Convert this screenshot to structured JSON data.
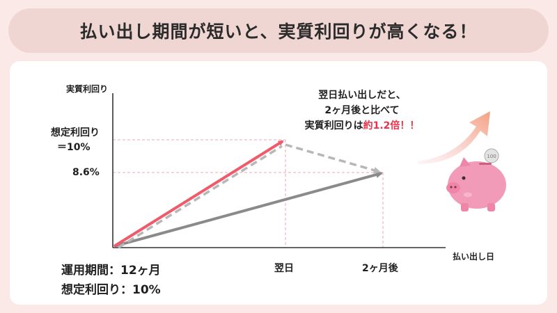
{
  "title": "払い出し期間が短いと、実質利回りが高くなる！",
  "y_axis_label": "実質利回り",
  "x_axis_label": "払い出し日",
  "y_labels": {
    "expected_line1": "想定利回り",
    "expected_line2": "＝10%",
    "actual": "8.6%"
  },
  "x_ticks": [
    "翌日",
    "2ヶ月後"
  ],
  "annotation": {
    "line1": "翌日払い出しだと、",
    "line2": "2ヶ月後と比べて",
    "line3_prefix": "実質利回りは",
    "line3_highlight": "約1.2倍！！"
  },
  "conditions": {
    "period": "運用期間：12ヶ月",
    "rate": "想定利回り：10%"
  },
  "coin_text": "100",
  "colors": {
    "red_arrow": "#ef5b6b",
    "dashed_arrow": "#b7b7b7",
    "gray_arrow": "#8a8a8a",
    "guide": "#f2a6b0",
    "pig": "#f29bb8"
  },
  "chart_data": {
    "type": "line",
    "x": [
      "0",
      "翌日",
      "2ヶ月後"
    ],
    "series": [
      {
        "values": [
          0,
          10,
          null
        ]
      },
      {
        "values": [
          0,
          10,
          8.6
        ]
      },
      {
        "values": [
          0,
          null,
          8.6
        ]
      }
    ],
    "ylabel": "実質利回り",
    "xlabel": "払い出し日"
  }
}
